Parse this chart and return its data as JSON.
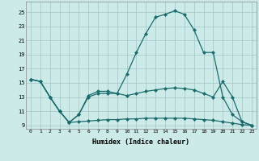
{
  "xlabel": "Humidex (Indice chaleur)",
  "background_color": "#cceae8",
  "grid_color": "#aacccc",
  "line_color": "#1a6b6b",
  "xlim": [
    -0.5,
    23.5
  ],
  "ylim": [
    8.5,
    26.5
  ],
  "yticks": [
    9,
    11,
    13,
    15,
    17,
    19,
    21,
    23,
    25
  ],
  "xticks": [
    0,
    1,
    2,
    3,
    4,
    5,
    6,
    7,
    8,
    9,
    10,
    11,
    12,
    13,
    14,
    15,
    16,
    17,
    18,
    19,
    20,
    21,
    22,
    23
  ],
  "series1_x": [
    0,
    1,
    2,
    3,
    4,
    5,
    6,
    7,
    8,
    9,
    10,
    11,
    12,
    13,
    14,
    15,
    16,
    17,
    18,
    19,
    20,
    21,
    22,
    23
  ],
  "series1_y": [
    15.5,
    15.2,
    13.0,
    11.0,
    9.4,
    9.5,
    9.6,
    9.7,
    9.8,
    9.8,
    9.9,
    9.9,
    10.0,
    10.0,
    10.0,
    10.0,
    10.0,
    9.9,
    9.8,
    9.7,
    9.5,
    9.3,
    9.1,
    9.0
  ],
  "series2_x": [
    0,
    1,
    2,
    3,
    4,
    5,
    6,
    7,
    8,
    9,
    10,
    11,
    12,
    13,
    14,
    15,
    16,
    17,
    18,
    19,
    20,
    21,
    22,
    23
  ],
  "series2_y": [
    15.5,
    15.2,
    13.0,
    11.0,
    9.4,
    10.5,
    13.0,
    13.5,
    13.5,
    13.5,
    13.2,
    13.5,
    13.8,
    14.0,
    14.2,
    14.3,
    14.2,
    14.0,
    13.5,
    13.0,
    15.2,
    13.0,
    9.5,
    9.0
  ],
  "series3_x": [
    0,
    1,
    2,
    3,
    4,
    5,
    6,
    7,
    8,
    9,
    10,
    11,
    12,
    13,
    14,
    15,
    16,
    17,
    18,
    19,
    20,
    21,
    22,
    23
  ],
  "series3_y": [
    15.5,
    15.2,
    13.0,
    11.0,
    9.4,
    10.5,
    13.2,
    13.8,
    13.8,
    13.5,
    16.2,
    19.3,
    22.0,
    24.3,
    24.7,
    25.2,
    24.7,
    22.5,
    19.3,
    19.3,
    13.0,
    10.5,
    9.5,
    9.0
  ]
}
